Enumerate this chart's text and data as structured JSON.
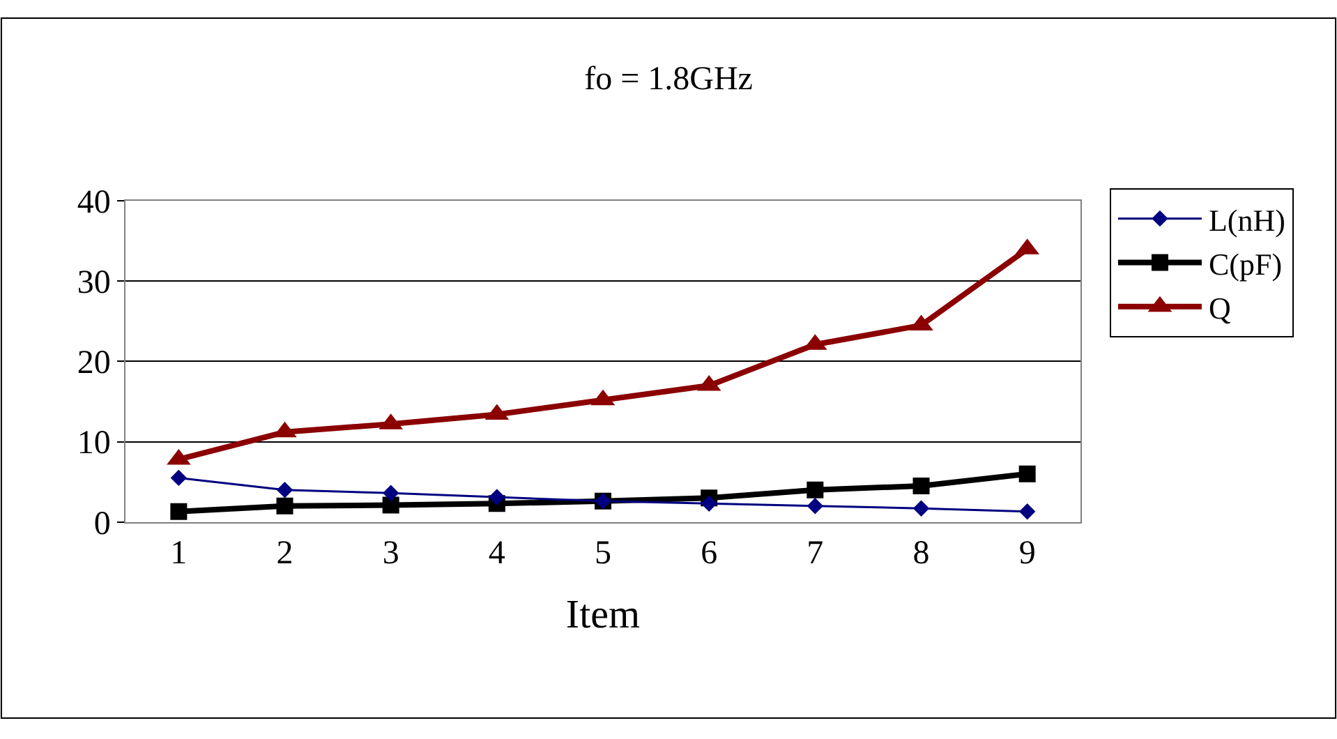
{
  "chart_data": {
    "type": "line",
    "title": "fo = 1.8GHz",
    "xlabel": "Item",
    "categories": [
      "1",
      "2",
      "3",
      "4",
      "5",
      "6",
      "7",
      "8",
      "9"
    ],
    "series": [
      {
        "name": "L(nH)",
        "color": "#000080",
        "marker": "diamond",
        "values": [
          5.5,
          4.0,
          3.6,
          3.1,
          2.6,
          2.3,
          2.0,
          1.7,
          1.3
        ]
      },
      {
        "name": "C(pF)",
        "color": "#000000",
        "marker": "square",
        "values": [
          1.3,
          2.0,
          2.1,
          2.3,
          2.6,
          3.0,
          4.0,
          4.5,
          6.0
        ]
      },
      {
        "name": "Q",
        "color": "#8b0000",
        "marker": "triangle",
        "values": [
          7.8,
          11.2,
          12.2,
          13.4,
          15.2,
          17.0,
          22.1,
          24.5,
          34.0
        ]
      }
    ],
    "ylim": [
      0,
      40
    ],
    "yticks": [
      0,
      10,
      20,
      30,
      40
    ],
    "grid": "y",
    "legend": "right"
  }
}
